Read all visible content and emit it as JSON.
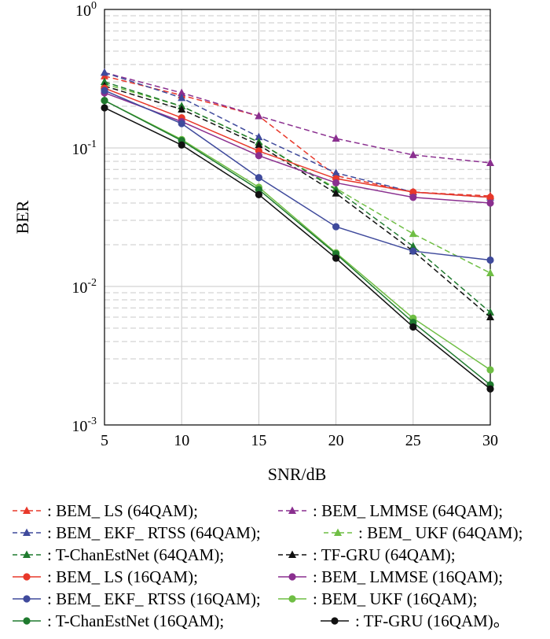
{
  "chart_data": {
    "type": "line",
    "xlabel": "SNR/dB",
    "ylabel": "BER",
    "yscale": "log",
    "xlim": [
      5,
      30
    ],
    "ylim": [
      0.001,
      1
    ],
    "grid": true,
    "legend_placement": "bottom",
    "x": [
      5,
      10,
      15,
      20,
      25,
      30
    ],
    "x_ticks": [
      "5",
      "10",
      "15",
      "20",
      "25",
      "30"
    ],
    "y_ticks": [
      {
        "base": "10",
        "exp": "0"
      },
      {
        "base": "10",
        "exp": "-1"
      },
      {
        "base": "10",
        "exp": "-2"
      },
      {
        "base": "10",
        "exp": "-3"
      }
    ],
    "series": [
      {
        "name": "BEM_ LS (64QAM)",
        "label": ": BEM_ LS (64QAM);",
        "color": "#e8382a",
        "marker": "triangle",
        "dashed": true,
        "values": [
          0.33,
          0.24,
          0.17,
          0.063,
          0.048,
          0.045
        ]
      },
      {
        "name": "BEM_ LMMSE (64QAM)",
        "label": ": BEM_ LMMSE (64QAM);",
        "color": "#8a2f8f",
        "marker": "triangle",
        "dashed": true,
        "values": [
          0.35,
          0.25,
          0.17,
          0.117,
          0.089,
          0.078
        ]
      },
      {
        "name": "BEM_ EKF_ RTSS (64QAM)",
        "label": ": BEM_ EKF_ RTSS (64QAM);",
        "color": "#3f4a9c",
        "marker": "triangle",
        "dashed": true,
        "values": [
          0.35,
          0.23,
          0.12,
          0.066,
          0.048,
          0.044
        ]
      },
      {
        "name": "BEM_ UKF (64QAM)",
        "label": ": BEM_ UKF (64QAM);",
        "color": "#6fbe44",
        "marker": "triangle",
        "dashed": true,
        "values": [
          0.29,
          0.2,
          0.11,
          0.051,
          0.024,
          0.0125
        ]
      },
      {
        "name": "T-ChanEstNet (64QAM)",
        "label": ": T-ChanEstNet (64QAM);",
        "color": "#1f7a2e",
        "marker": "triangle",
        "dashed": true,
        "values": [
          0.3,
          0.2,
          0.11,
          0.05,
          0.0195,
          0.0065
        ]
      },
      {
        "name": "TF-GRU (64QAM)",
        "label": ": TF-GRU (64QAM);",
        "color": "#111111",
        "marker": "triangle",
        "dashed": true,
        "values": [
          0.28,
          0.19,
          0.105,
          0.047,
          0.018,
          0.006
        ]
      },
      {
        "name": "BEM_ LS (16QAM)",
        "label": ": BEM_ LS (16QAM);",
        "color": "#e8382a",
        "marker": "circle",
        "dashed": false,
        "values": [
          0.27,
          0.165,
          0.095,
          0.06,
          0.048,
          0.044
        ]
      },
      {
        "name": "BEM_ LMMSE (16QAM)",
        "label": ": BEM_ LMMSE (16QAM);",
        "color": "#8a2f8f",
        "marker": "circle",
        "dashed": false,
        "values": [
          0.25,
          0.155,
          0.088,
          0.056,
          0.044,
          0.04
        ]
      },
      {
        "name": "BEM_ EKF_ RTSS (16QAM)",
        "label": ": BEM_ EKF_ RTSS (16QAM);",
        "color": "#3f4a9c",
        "marker": "circle",
        "dashed": false,
        "values": [
          0.26,
          0.15,
          0.061,
          0.027,
          0.018,
          0.0155
        ]
      },
      {
        "name": "BEM_ UKF (16QAM)",
        "label": ": BEM_ UKF (16QAM);",
        "color": "#6fbe44",
        "marker": "circle",
        "dashed": false,
        "values": [
          0.22,
          0.115,
          0.052,
          0.0175,
          0.0059,
          0.0025
        ]
      },
      {
        "name": "T-ChanEstNet (16QAM)",
        "label": ": T-ChanEstNet (16QAM);",
        "color": "#1f7a2e",
        "marker": "circle",
        "dashed": false,
        "values": [
          0.22,
          0.113,
          0.05,
          0.0172,
          0.0055,
          0.00195
        ]
      },
      {
        "name": "TF-GRU (16QAM)",
        "label": ": TF-GRU (16QAM)。",
        "color": "#111111",
        "marker": "circle",
        "dashed": false,
        "values": [
          0.195,
          0.105,
          0.046,
          0.016,
          0.0051,
          0.00182
        ]
      }
    ]
  }
}
